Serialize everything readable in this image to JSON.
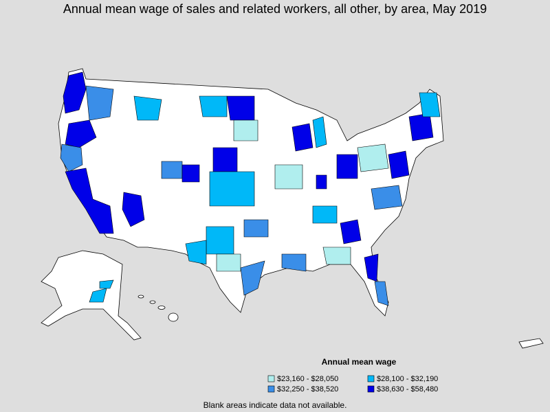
{
  "title": "Annual mean wage of sales and related workers, all other, by area, May 2019",
  "legend": {
    "title": "Annual mean wage",
    "items": [
      {
        "label": "$23,160 - $28,050",
        "color": "#b0eeee"
      },
      {
        "label": "$28,100 - $32,190",
        "color": "#00b8f8"
      },
      {
        "label": "$32,250 - $38,520",
        "color": "#3a8ee8"
      },
      {
        "label": "$38,630 - $58,480",
        "color": "#0000e8"
      }
    ]
  },
  "note": "Blank areas indicate data not available."
}
